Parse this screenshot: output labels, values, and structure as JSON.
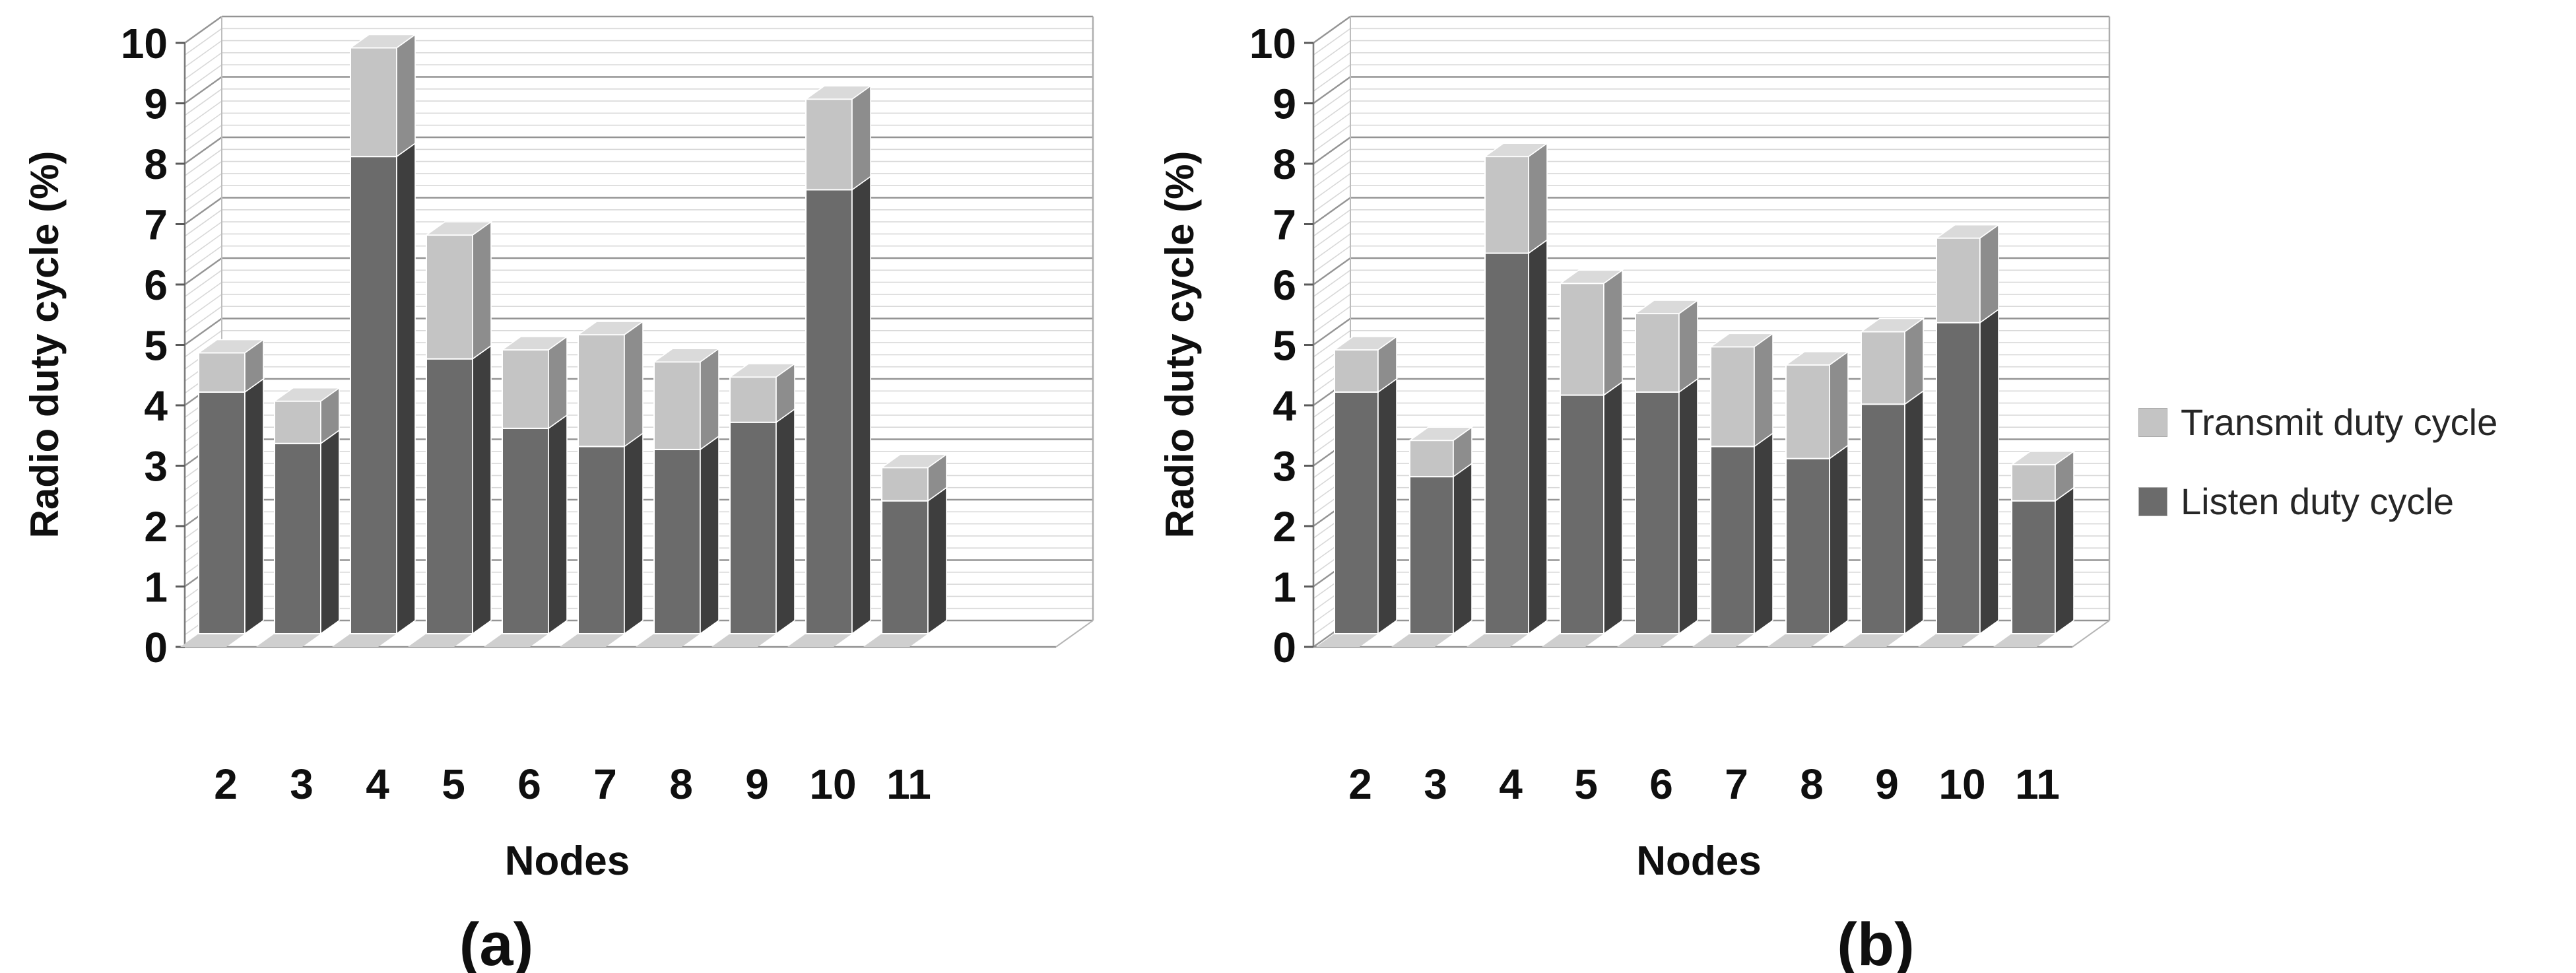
{
  "figure": {
    "background": "#ffffff",
    "text_color": "#0f0f0f"
  },
  "legend": {
    "position": "right-middle",
    "items": [
      {
        "label": "Transmit duty cycle",
        "color": "#c4c4c4"
      },
      {
        "label": "Listen duty cycle",
        "color": "#6b6b6b"
      }
    ]
  },
  "chart_data": [
    {
      "type": "bar",
      "stacked": true,
      "style": "3d-column",
      "panel": "a",
      "caption": "(a)",
      "title": "",
      "xlabel": "Nodes",
      "ylabel": "Radio duty cycle (%)",
      "ylim": [
        0,
        10
      ],
      "yticks": [
        0,
        1,
        2,
        3,
        4,
        5,
        6,
        7,
        8,
        9,
        10
      ],
      "minor_grid_interval": 0.2,
      "grid": "on",
      "categories": [
        "2",
        "3",
        "4",
        "5",
        "6",
        "7",
        "8",
        "9",
        "10",
        "11"
      ],
      "series": [
        {
          "name": "Listen duty cycle",
          "color": "#6b6b6b",
          "values": [
            4.0,
            3.15,
            7.9,
            4.55,
            3.4,
            3.1,
            3.05,
            3.5,
            7.35,
            2.2
          ]
        },
        {
          "name": "Transmit duty cycle",
          "color": "#c4c4c4",
          "values": [
            0.65,
            0.7,
            1.8,
            2.05,
            1.3,
            1.85,
            1.45,
            0.75,
            1.5,
            0.55
          ]
        }
      ],
      "stack_totals": [
        4.65,
        3.85,
        9.7,
        6.6,
        4.7,
        4.95,
        4.5,
        4.25,
        8.85,
        2.75
      ]
    },
    {
      "type": "bar",
      "stacked": true,
      "style": "3d-column",
      "panel": "b",
      "caption": "(b)",
      "title": "",
      "xlabel": "Nodes",
      "ylabel": "Radio duty cycle (%)",
      "ylim": [
        0,
        10
      ],
      "yticks": [
        0,
        1,
        2,
        3,
        4,
        5,
        6,
        7,
        8,
        9,
        10
      ],
      "minor_grid_interval": 0.2,
      "grid": "on",
      "categories": [
        "2",
        "3",
        "4",
        "5",
        "6",
        "7",
        "8",
        "9",
        "10",
        "11"
      ],
      "series": [
        {
          "name": "Listen duty cycle",
          "color": "#6b6b6b",
          "values": [
            4.0,
            2.6,
            6.3,
            3.95,
            4.0,
            3.1,
            2.9,
            3.8,
            5.15,
            2.2
          ]
        },
        {
          "name": "Transmit duty cycle",
          "color": "#c4c4c4",
          "values": [
            0.7,
            0.6,
            1.6,
            1.85,
            1.3,
            1.65,
            1.55,
            1.2,
            1.4,
            0.6
          ]
        }
      ],
      "stack_totals": [
        4.7,
        3.2,
        7.9,
        5.8,
        5.3,
        4.75,
        4.45,
        5.0,
        6.55,
        2.8
      ]
    }
  ]
}
